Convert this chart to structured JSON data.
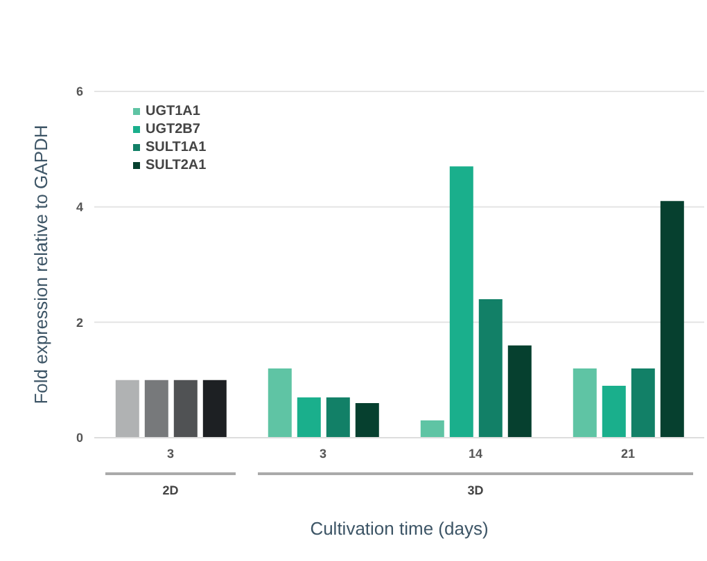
{
  "chart_data": {
    "type": "bar",
    "xlabel": "Cultivation time (days)",
    "ylabel": "Fold expression relative to GAPDH",
    "categories": [
      "3",
      "3",
      "14",
      "21"
    ],
    "series": [
      {
        "name": "UGT1A1",
        "color": "#5fc4a4",
        "colors": [
          "#b0b2b3",
          "#5fc4a4",
          "#5fc4a4",
          "#5fc4a4"
        ],
        "values": [
          1.0,
          1.2,
          0.3,
          1.2
        ]
      },
      {
        "name": "UGT2B7",
        "color": "#1aaf8c",
        "colors": [
          "#77797b",
          "#1aaf8c",
          "#1aaf8c",
          "#1aaf8c"
        ],
        "values": [
          1.0,
          0.7,
          4.7,
          0.9
        ]
      },
      {
        "name": "SULT1A1",
        "color": "#128067",
        "colors": [
          "#505254",
          "#128067",
          "#128067",
          "#128067"
        ],
        "values": [
          1.0,
          0.7,
          2.4,
          1.2
        ]
      },
      {
        "name": "SULT2A1",
        "color": "#06402f",
        "colors": [
          "#1d2023",
          "#06402f",
          "#06402f",
          "#06402f"
        ],
        "values": [
          1.0,
          0.6,
          1.6,
          4.1
        ]
      }
    ],
    "annotations": [
      "2D",
      "3D"
    ],
    "ylim": [
      0,
      6
    ],
    "yticks": [
      0,
      2,
      4,
      6
    ],
    "grid": "y",
    "legend": "top left"
  }
}
